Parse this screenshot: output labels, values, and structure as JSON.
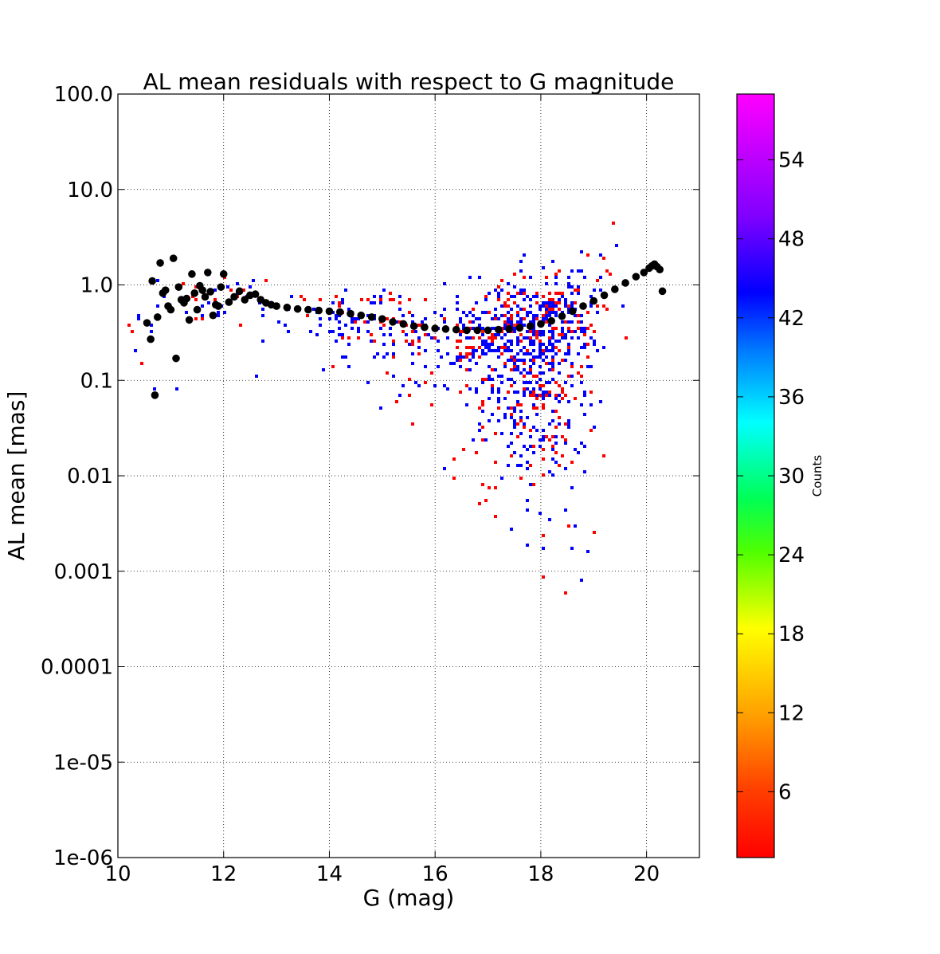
{
  "chart_data": {
    "type": "heatmap",
    "title": "AL mean residuals with respect to G magnitude",
    "xlabel": "G (mag)",
    "ylabel": "AL mean [mas]",
    "xlim": [
      10,
      21
    ],
    "ylim": [
      1e-06,
      100
    ],
    "yscale": "log",
    "grid": true,
    "x_ticks": [
      10,
      12,
      14,
      16,
      18,
      20
    ],
    "x_tick_labels": [
      "10",
      "12",
      "14",
      "16",
      "18",
      "20"
    ],
    "y_ticks": [
      1e-06,
      1e-05,
      0.0001,
      0.001,
      0.01,
      0.1,
      1,
      10,
      100
    ],
    "y_tick_labels": [
      "1e-06",
      "1e-05",
      "0.0001",
      "0.001",
      "0.01",
      "0.1",
      "1.0",
      "10.0",
      "100.0"
    ],
    "colorbar": {
      "label": "Counts",
      "range": [
        1,
        59
      ],
      "ticks": [
        6,
        12,
        18,
        24,
        30,
        36,
        42,
        48,
        54
      ],
      "tick_labels": [
        "6",
        "12",
        "18",
        "24",
        "30",
        "36",
        "42",
        "48",
        "54"
      ],
      "colormap": [
        "#ff0000",
        "#ff8000",
        "#ffff00",
        "#00ff00",
        "#00ffff",
        "#0000ff",
        "#8000ff",
        "#ff00ff"
      ]
    },
    "density_summary": {
      "description_peak_G": 18.0,
      "peak_y": 0.35,
      "peak_counts": 44
    },
    "series": [
      {
        "name": "mean",
        "marker_color": "#000000",
        "x": [
          10.55,
          10.62,
          10.65,
          10.7,
          10.75,
          10.8,
          10.85,
          10.9,
          10.95,
          11.0,
          11.05,
          11.1,
          11.15,
          11.2,
          11.25,
          11.3,
          11.35,
          11.4,
          11.45,
          11.5,
          11.55,
          11.6,
          11.65,
          11.7,
          11.75,
          11.8,
          11.85,
          11.9,
          11.95,
          12.0,
          12.1,
          12.2,
          12.3,
          12.4,
          12.5,
          12.6,
          12.7,
          12.8,
          12.9,
          13.0,
          13.2,
          13.4,
          13.6,
          13.8,
          14.0,
          14.2,
          14.4,
          14.6,
          14.8,
          15.0,
          15.2,
          15.4,
          15.6,
          15.8,
          16.0,
          16.2,
          16.4,
          16.6,
          16.8,
          17.0,
          17.2,
          17.4,
          17.6,
          17.8,
          18.0,
          18.2,
          18.4,
          18.6,
          18.8,
          19.0,
          19.2,
          19.4,
          19.6,
          19.8,
          19.95,
          20.05,
          20.1,
          20.15,
          20.2,
          20.25,
          20.3
        ],
        "y": [
          0.4,
          0.27,
          1.1,
          0.07,
          0.46,
          1.7,
          0.82,
          0.88,
          0.6,
          0.55,
          1.9,
          0.17,
          0.95,
          0.7,
          0.65,
          0.72,
          0.43,
          1.3,
          0.82,
          0.55,
          0.98,
          0.88,
          0.75,
          1.35,
          0.85,
          0.48,
          0.62,
          0.6,
          0.95,
          1.3,
          0.66,
          0.75,
          0.86,
          0.7,
          0.78,
          0.8,
          0.7,
          0.65,
          0.62,
          0.6,
          0.58,
          0.56,
          0.55,
          0.54,
          0.53,
          0.52,
          0.5,
          0.48,
          0.46,
          0.44,
          0.41,
          0.39,
          0.37,
          0.36,
          0.35,
          0.345,
          0.34,
          0.335,
          0.335,
          0.335,
          0.34,
          0.345,
          0.355,
          0.37,
          0.39,
          0.42,
          0.47,
          0.53,
          0.6,
          0.68,
          0.78,
          0.9,
          1.05,
          1.22,
          1.35,
          1.5,
          1.58,
          1.65,
          1.55,
          1.45,
          0.86
        ]
      }
    ]
  }
}
